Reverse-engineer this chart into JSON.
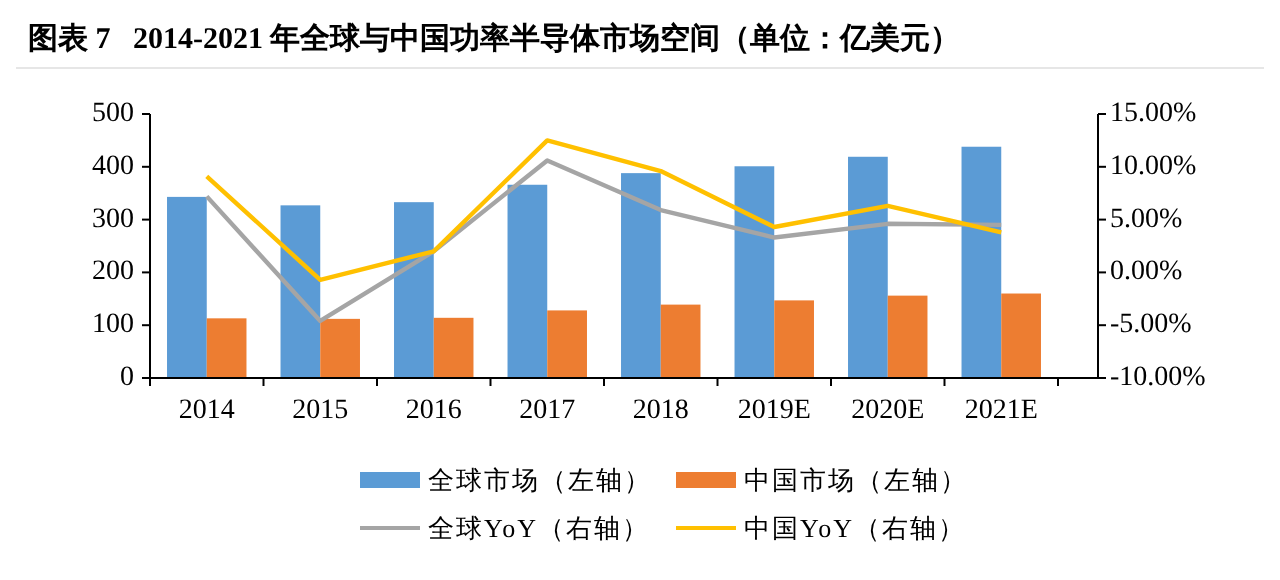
{
  "chart_data": {
    "type": "bar",
    "title": "图表 7   2014-2021 年全球与中国功率半导体市场空间（单位：亿美元）",
    "categories": [
      "2014",
      "2015",
      "2016",
      "2017",
      "2018",
      "2019E",
      "2020E",
      "2021E"
    ],
    "series": [
      {
        "name": "全球市场（左轴）",
        "color": "#5b9bd5",
        "values": [
          343,
          327,
          333,
          366,
          388,
          401,
          419,
          438
        ]
      },
      {
        "name": "中国市场（左轴）",
        "color": "#ed7d31",
        "values": [
          113,
          112,
          114,
          128,
          139,
          147,
          156,
          160
        ]
      },
      {
        "name": "全球YoY（右轴）",
        "type": "line",
        "axis": "y2",
        "color": "#a5a5a5",
        "values": [
          7.2,
          -4.6,
          2.0,
          10.6,
          5.9,
          3.3,
          4.6,
          4.5
        ]
      },
      {
        "name": "中国YoY（右轴）",
        "type": "line",
        "axis": "y2",
        "color": "#ffc000",
        "values": [
          9.1,
          -0.7,
          2.0,
          12.5,
          9.6,
          4.3,
          6.3,
          3.8
        ]
      }
    ],
    "ylim": [
      0,
      500
    ],
    "yticks": [
      0,
      100,
      200,
      300,
      400,
      500
    ],
    "y2lim": [
      -10,
      15
    ],
    "y2ticks": [
      {
        "value": -10,
        "label": "-10.00%"
      },
      {
        "value": -5,
        "label": "-5.00%"
      },
      {
        "value": 0,
        "label": "0.00%"
      },
      {
        "value": 5,
        "label": "5.00%"
      },
      {
        "value": 10,
        "label": "10.00%"
      },
      {
        "value": 15,
        "label": "15.00%"
      }
    ],
    "grid": false,
    "legend": "bottom",
    "marker": "none"
  }
}
